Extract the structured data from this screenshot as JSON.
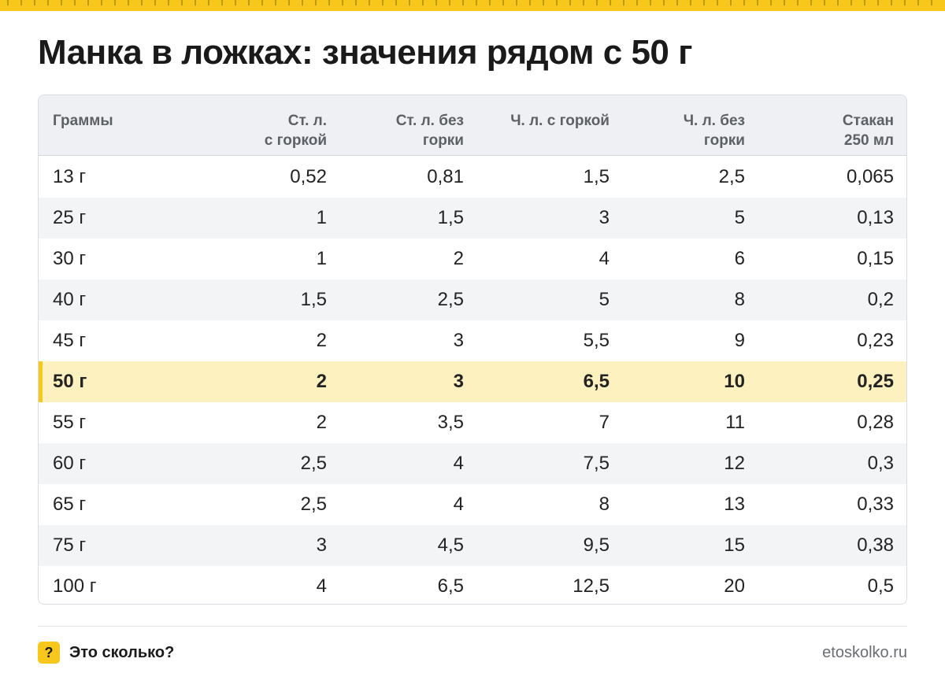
{
  "title": "Манка в ложках: значения рядом с 50 г",
  "table": {
    "headers": [
      [
        "Граммы"
      ],
      [
        "Ст. л.",
        "с горкой"
      ],
      [
        "Ст. л. без",
        "горки"
      ],
      [
        "Ч. л. с горкой"
      ],
      [
        "Ч. л. без",
        "горки"
      ],
      [
        "Стакан",
        "250 мл"
      ]
    ],
    "rows": [
      [
        "13 г",
        "0,52",
        "0,81",
        "1,5",
        "2,5",
        "0,065"
      ],
      [
        "25 г",
        "1",
        "1,5",
        "3",
        "5",
        "0,13"
      ],
      [
        "30 г",
        "1",
        "2",
        "4",
        "6",
        "0,15"
      ],
      [
        "40 г",
        "1,5",
        "2,5",
        "5",
        "8",
        "0,2"
      ],
      [
        "45 г",
        "2",
        "3",
        "5,5",
        "9",
        "0,23"
      ],
      [
        "50 г",
        "2",
        "3",
        "6,5",
        "10",
        "0,25"
      ],
      [
        "55 г",
        "2",
        "3,5",
        "7",
        "11",
        "0,28"
      ],
      [
        "60 г",
        "2,5",
        "4",
        "7,5",
        "12",
        "0,3"
      ],
      [
        "65 г",
        "2,5",
        "4",
        "8",
        "13",
        "0,33"
      ],
      [
        "75 г",
        "3",
        "4,5",
        "9,5",
        "15",
        "0,38"
      ],
      [
        "100 г",
        "4",
        "6,5",
        "12,5",
        "20",
        "0,5"
      ]
    ],
    "highlighted_row": 5
  },
  "footer": {
    "badge": "?",
    "brand": "Это сколько?",
    "site": "etoskolko.ru"
  },
  "colors": {
    "accent": "#f7c81b",
    "highlight_row": "#fdf1c0",
    "header_bg": "#eef0f3",
    "alt_row": "#f3f4f6"
  }
}
